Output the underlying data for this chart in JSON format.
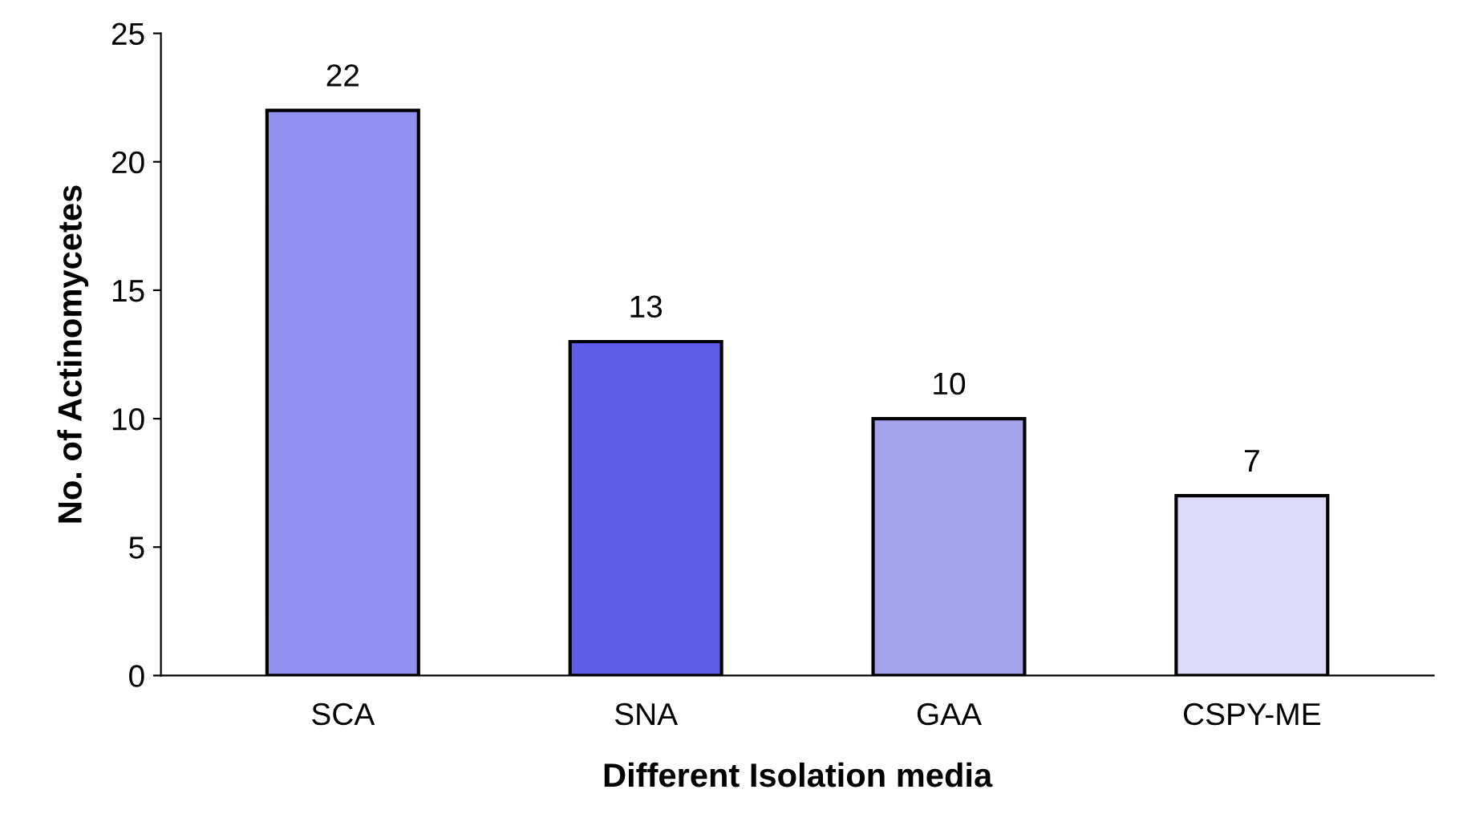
{
  "chart_data": {
    "type": "bar",
    "xlabel": "Different Isolation media",
    "ylabel": "No. of Actinomycetes",
    "categories": [
      "SCA",
      "SNA",
      "GAA",
      "CSPY-ME"
    ],
    "values": [
      22,
      13,
      10,
      7
    ],
    "colors": [
      "#9090f0",
      "#5c5ce8",
      "#a4a4ec",
      "#dcdcf8"
    ],
    "ylim": [
      0,
      25
    ],
    "yticks": [
      0,
      5,
      10,
      15,
      20,
      25
    ],
    "grid": false,
    "data_labels": true
  }
}
